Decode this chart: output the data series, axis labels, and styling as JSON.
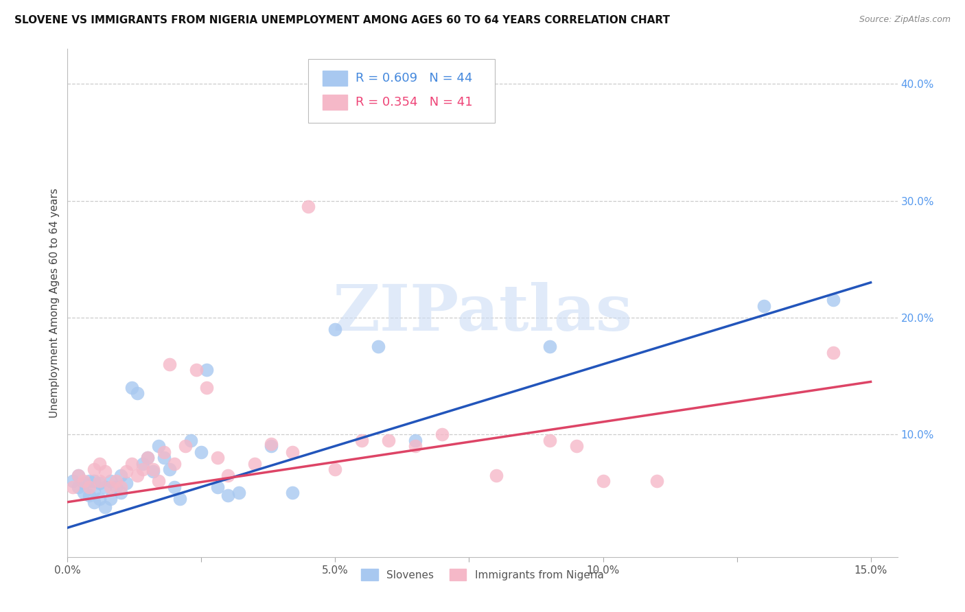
{
  "title": "SLOVENE VS IMMIGRANTS FROM NIGERIA UNEMPLOYMENT AMONG AGES 60 TO 64 YEARS CORRELATION CHART",
  "source": "Source: ZipAtlas.com",
  "ylabel": "Unemployment Among Ages 60 to 64 years",
  "xlim": [
    0.0,
    0.155
  ],
  "ylim": [
    -0.005,
    0.43
  ],
  "background_color": "#ffffff",
  "watermark_text": "ZIPatlas",
  "slovene_color": "#a8c8f0",
  "nigeria_color": "#f5b8c8",
  "slovene_line_color": "#2255bb",
  "nigeria_line_color": "#dd4466",
  "slovene_R": 0.609,
  "slovene_N": 44,
  "nigeria_R": 0.354,
  "nigeria_N": 41,
  "legend_color_blue": "#4488dd",
  "legend_color_pink": "#ee4477",
  "slovene_x": [
    0.001,
    0.002,
    0.002,
    0.003,
    0.003,
    0.004,
    0.004,
    0.005,
    0.005,
    0.005,
    0.006,
    0.006,
    0.007,
    0.007,
    0.008,
    0.008,
    0.009,
    0.01,
    0.01,
    0.011,
    0.012,
    0.013,
    0.014,
    0.015,
    0.016,
    0.017,
    0.018,
    0.019,
    0.02,
    0.021,
    0.023,
    0.025,
    0.026,
    0.028,
    0.03,
    0.032,
    0.038,
    0.042,
    0.05,
    0.058,
    0.065,
    0.09,
    0.13,
    0.143
  ],
  "slovene_y": [
    0.06,
    0.055,
    0.065,
    0.05,
    0.058,
    0.06,
    0.048,
    0.052,
    0.06,
    0.042,
    0.058,
    0.045,
    0.055,
    0.038,
    0.06,
    0.045,
    0.055,
    0.05,
    0.065,
    0.058,
    0.14,
    0.135,
    0.075,
    0.08,
    0.068,
    0.09,
    0.08,
    0.07,
    0.055,
    0.045,
    0.095,
    0.085,
    0.155,
    0.055,
    0.048,
    0.05,
    0.09,
    0.05,
    0.19,
    0.175,
    0.095,
    0.175,
    0.21,
    0.215
  ],
  "nigeria_x": [
    0.001,
    0.002,
    0.003,
    0.004,
    0.005,
    0.006,
    0.006,
    0.007,
    0.008,
    0.009,
    0.01,
    0.011,
    0.012,
    0.013,
    0.014,
    0.015,
    0.016,
    0.017,
    0.018,
    0.019,
    0.02,
    0.022,
    0.024,
    0.026,
    0.028,
    0.03,
    0.035,
    0.038,
    0.042,
    0.045,
    0.05,
    0.055,
    0.06,
    0.065,
    0.07,
    0.08,
    0.09,
    0.095,
    0.1,
    0.11,
    0.143
  ],
  "nigeria_y": [
    0.055,
    0.065,
    0.06,
    0.055,
    0.07,
    0.06,
    0.075,
    0.068,
    0.055,
    0.06,
    0.055,
    0.068,
    0.075,
    0.065,
    0.07,
    0.08,
    0.07,
    0.06,
    0.085,
    0.16,
    0.075,
    0.09,
    0.155,
    0.14,
    0.08,
    0.065,
    0.075,
    0.092,
    0.085,
    0.295,
    0.07,
    0.095,
    0.095,
    0.09,
    0.1,
    0.065,
    0.095,
    0.09,
    0.06,
    0.06,
    0.17
  ],
  "slovene_trend_x0": 0.0,
  "slovene_trend_y0": 0.02,
  "slovene_trend_x1": 0.15,
  "slovene_trend_y1": 0.23,
  "nigeria_trend_x0": 0.0,
  "nigeria_trend_y0": 0.042,
  "nigeria_trend_x1": 0.15,
  "nigeria_trend_y1": 0.145
}
